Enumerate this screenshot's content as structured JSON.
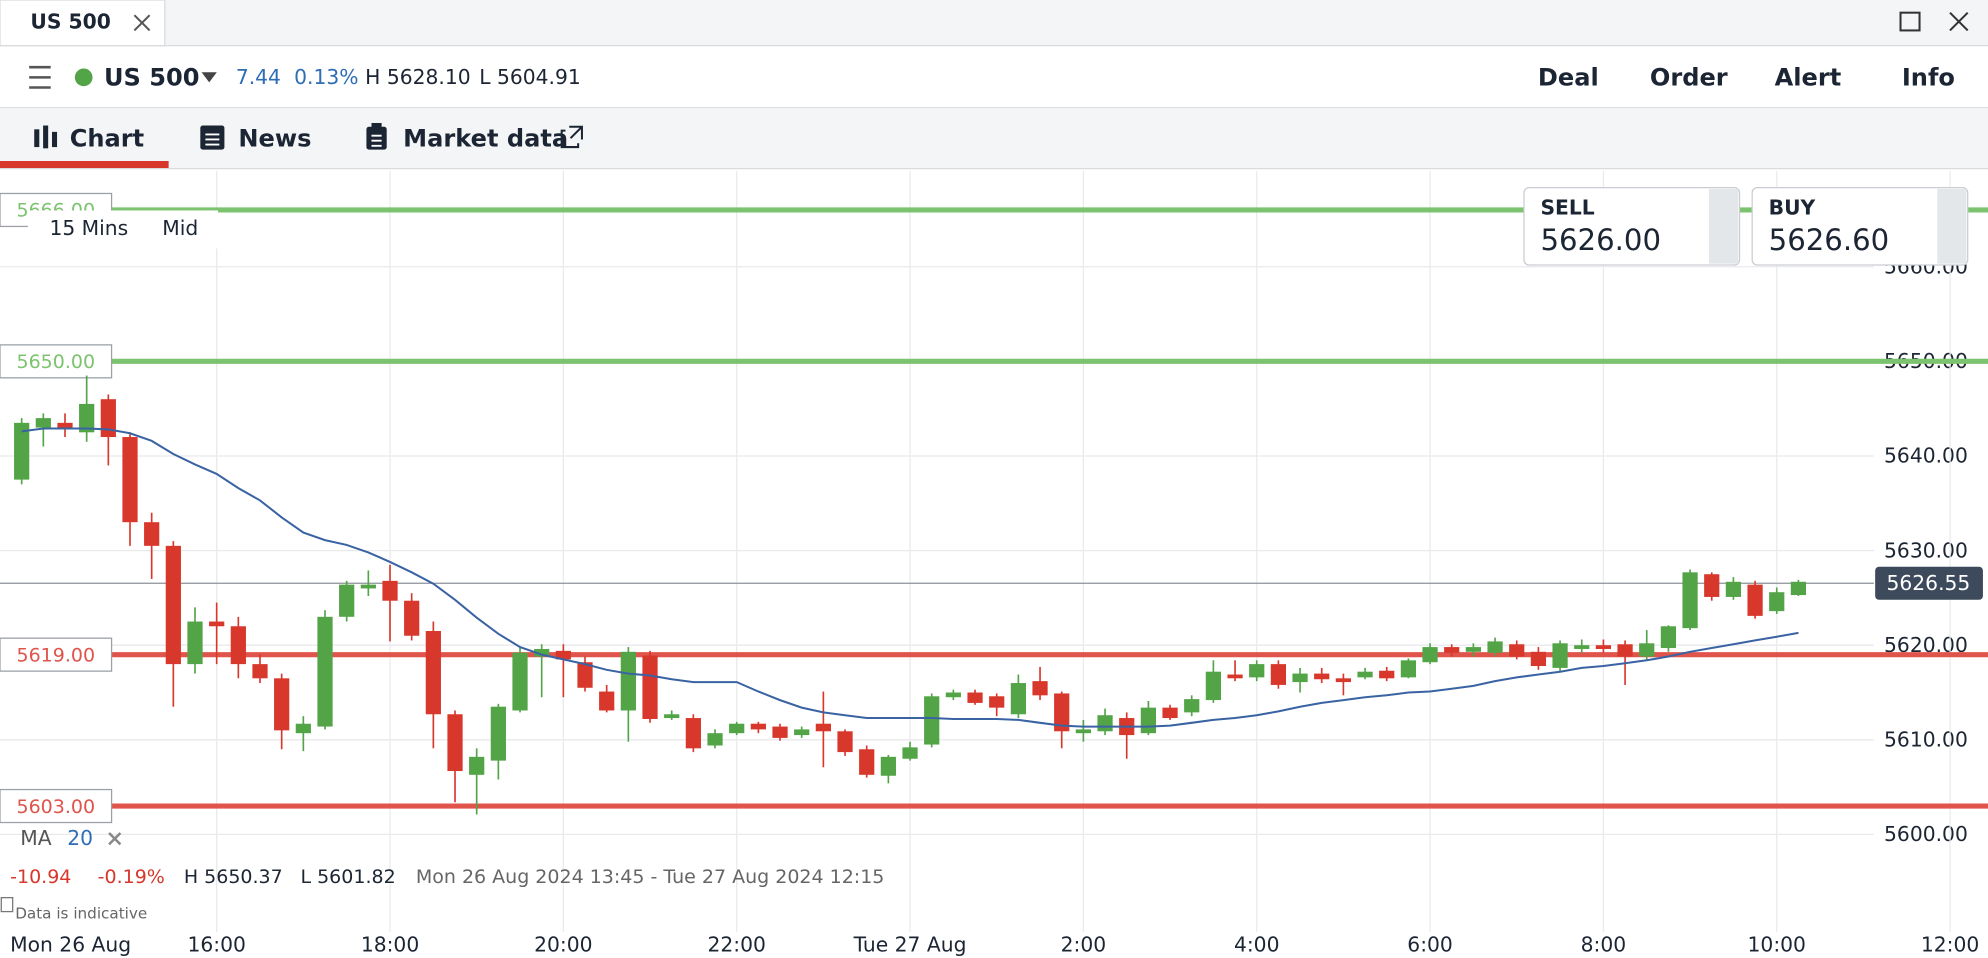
{
  "window": {
    "tab_title": "US 500"
  },
  "instrument": {
    "name": "US 500",
    "change": "7.44",
    "change_pct": "0.13%",
    "high": "H 5628.10",
    "low": "L 5604.91"
  },
  "actions": [
    "Deal",
    "Order",
    "Alert",
    "Info"
  ],
  "tabs": [
    "Chart",
    "News",
    "Market data"
  ],
  "quote": {
    "sell_label": "SELL",
    "sell": "5626.00",
    "buy_label": "BUY",
    "buy": "5626.60"
  },
  "chart_settings": {
    "interval": "15 Mins",
    "price_type": "Mid"
  },
  "indicator": {
    "name": "MA",
    "period": 20
  },
  "summary": {
    "change": "-10.94",
    "change_pct": "-0.19%",
    "high": "H 5650.37",
    "low": "L 5601.82",
    "range": "Mon 26 Aug 2024 13:45 - Tue 27 Aug 2024 12:15"
  },
  "disclaimer": "Data is indicative",
  "chart_data": {
    "type": "candlestick",
    "xlim": [
      -1,
      90.75
    ],
    "ylim": [
      5589.7,
      5670.1
    ],
    "start_label": "Mon 26 Aug",
    "xticks": [
      {
        "value": 9,
        "label": "16:00"
      },
      {
        "value": 17,
        "label": "18:00"
      },
      {
        "value": 25,
        "label": "20:00"
      },
      {
        "value": 33,
        "label": "22:00"
      },
      {
        "value": 41,
        "label": "Tue 27 Aug"
      },
      {
        "value": 49,
        "label": "2:00"
      },
      {
        "value": 57,
        "label": "4:00"
      },
      {
        "value": 65,
        "label": "6:00"
      },
      {
        "value": 73,
        "label": "8:00"
      },
      {
        "value": 81,
        "label": "10:00"
      },
      {
        "value": 89,
        "label": "12:00"
      }
    ],
    "yticks": [
      {
        "value": 5600,
        "label": "5600.00"
      },
      {
        "value": 5610,
        "label": "5610.00"
      },
      {
        "value": 5620,
        "label": "5620.00"
      },
      {
        "value": 5630,
        "label": "5630.00"
      },
      {
        "value": 5640,
        "label": "5640.00"
      },
      {
        "value": 5650,
        "label": "5650.00"
      },
      {
        "value": 5660,
        "label": "5660.00"
      }
    ],
    "grid": true,
    "up_color": "#52a447",
    "down_color": "#d8372c",
    "open": [
      5637.5,
      5643,
      5643.5,
      5642.5,
      5646,
      5642,
      5633,
      5630.5,
      5618,
      5622.5,
      5622,
      5618,
      5616.5,
      5610.7,
      5611.4,
      5623,
      5626,
      5626.8,
      5624.7,
      5621.5,
      5612.7,
      5606.3,
      5607.8,
      5613.1,
      5618.8,
      5619.4,
      5618.2,
      5615.1,
      5613.1,
      5618.9,
      5612.3,
      5612.3,
      5609.4,
      5610.7,
      5611.7,
      5611.4,
      5610.5,
      5611.7,
      5610.9,
      5609,
      5606.2,
      5608,
      5609.5,
      5614.5,
      5615,
      5614.6,
      5612.7,
      5616.2,
      5614.9,
      5610.7,
      5610.9,
      5612.3,
      5610.7,
      5613.4,
      5612.9,
      5614.2,
      5616.9,
      5616.6,
      5618,
      5616.1,
      5617,
      5616.5,
      5616.6,
      5617.3,
      5616.6,
      5618.2,
      5619.8,
      5619.3,
      5619.2,
      5620.1,
      5619.3,
      5617.6,
      5619.6,
      5620,
      5620.1,
      5618.8,
      5619.7,
      5621.8,
      5627.5,
      5625.1,
      5626.4,
      5623.6,
      5625.3
    ],
    "high": [
      5644,
      5644.5,
      5644.5,
      5648.5,
      5646.5,
      5642.5,
      5634,
      5631,
      5624,
      5624.5,
      5623,
      5619,
      5617,
      5612.5,
      5623.7,
      5626.8,
      5627.9,
      5628.5,
      5625.5,
      5622.5,
      5613.1,
      5609.1,
      5613.8,
      5619.8,
      5620.1,
      5620.1,
      5618.8,
      5615.8,
      5619.8,
      5619.4,
      5613.1,
      5612.7,
      5611.1,
      5611.9,
      5611.9,
      5611.7,
      5611.4,
      5615.1,
      5611.1,
      5609.4,
      5608.4,
      5609.8,
      5614.9,
      5615.3,
      5615.3,
      5614.9,
      5616.9,
      5617.7,
      5615.1,
      5612.1,
      5613.3,
      5612.9,
      5614.1,
      5613.7,
      5614.7,
      5618.4,
      5618.4,
      5618.4,
      5618.4,
      5617.6,
      5617.6,
      5617,
      5617.6,
      5617.7,
      5618.6,
      5620.2,
      5620.1,
      5620.2,
      5620.8,
      5620.5,
      5619.8,
      5620.5,
      5620.6,
      5620.6,
      5620.5,
      5621.6,
      5622.1,
      5628,
      5627.7,
      5627.2,
      5626.8,
      5626.1,
      5626.9
    ],
    "low": [
      5637,
      5641,
      5642,
      5641.5,
      5639,
      5630.5,
      5627,
      5613.5,
      5617,
      5618,
      5616.5,
      5616,
      5609,
      5608.8,
      5611.1,
      5622.5,
      5625.2,
      5620.4,
      5620.5,
      5609.1,
      5603.4,
      5602.1,
      5605.8,
      5612.9,
      5614.5,
      5614.5,
      5615.1,
      5612.9,
      5609.8,
      5611.8,
      5612.1,
      5608.7,
      5609.1,
      5610.5,
      5610.7,
      5609.9,
      5610.2,
      5607.1,
      5608.3,
      5606,
      5605.4,
      5607.8,
      5609.2,
      5614.2,
      5613.7,
      5612.5,
      5612.3,
      5614.2,
      5609.1,
      5609.8,
      5610.5,
      5608,
      5610.5,
      5612.1,
      5612.5,
      5613.9,
      5616.2,
      5616.2,
      5615.4,
      5615,
      5616,
      5614.7,
      5616.4,
      5616.2,
      5616.5,
      5618,
      5618.8,
      5618.8,
      5618.8,
      5618.5,
      5617.4,
      5617.2,
      5619.2,
      5619.2,
      5615.8,
      5618.5,
      5619.3,
      5621.6,
      5624.7,
      5624.8,
      5622.8,
      5623.3,
      5625.2
    ],
    "close": [
      5643.5,
      5644,
      5643,
      5645.5,
      5642,
      5633,
      5630.5,
      5618,
      5622.5,
      5622,
      5618,
      5616.5,
      5611,
      5611.7,
      5623,
      5626.4,
      5626.4,
      5624.7,
      5621,
      5612.7,
      5606.7,
      5608.2,
      5613.5,
      5619.2,
      5619.6,
      5618.5,
      5615.5,
      5613.1,
      5619.3,
      5612.2,
      5612.7,
      5609.1,
      5610.7,
      5611.7,
      5611.1,
      5610.2,
      5611.1,
      5610.9,
      5608.7,
      5606.3,
      5608.2,
      5609.2,
      5614.6,
      5615,
      5613.9,
      5613.4,
      5616,
      5614.7,
      5610.9,
      5611.1,
      5612.6,
      5610.5,
      5613.4,
      5612.3,
      5614.3,
      5617.2,
      5616.5,
      5618,
      5615.8,
      5617,
      5616.4,
      5616.1,
      5617.2,
      5616.5,
      5618.4,
      5619.8,
      5619.2,
      5619.8,
      5620.4,
      5618.8,
      5617.8,
      5620.2,
      5620,
      5619.6,
      5618.8,
      5620.2,
      5622,
      5627.7,
      5625.1,
      5626.7,
      5623.1,
      5625.6,
      5626.7
    ],
    "ma": {
      "color": "#3a63a3",
      "values": [
        5642.6,
        5642.9,
        5642.9,
        5642.9,
        5642.8,
        5642.4,
        5641.6,
        5640.2,
        5639.1,
        5638.1,
        5636.6,
        5635.3,
        5633.5,
        5631.9,
        5631.1,
        5630.6,
        5629.8,
        5628.8,
        5627.7,
        5626.5,
        5624.8,
        5622.9,
        5621.2,
        5619.8,
        5619.0,
        5618.5,
        5618.0,
        5617.4,
        5617.0,
        5616.8,
        5616.4,
        5616.1,
        5616.1,
        5616.1,
        5615.1,
        5614.2,
        5613.4,
        5612.9,
        5612.6,
        5612.3,
        5612.3,
        5612.3,
        5612.3,
        5612.2,
        5612.2,
        5612.2,
        5612.1,
        5611.8,
        5611.5,
        5611.4,
        5611.4,
        5611.4,
        5611.4,
        5611.5,
        5611.8,
        5612.1,
        5612.3,
        5612.6,
        5613.0,
        5613.5,
        5613.9,
        5614.2,
        5614.5,
        5614.7,
        5615.0,
        5615.1,
        5615.4,
        5615.7,
        5616.2,
        5616.6,
        5616.9,
        5617.2,
        5617.6,
        5617.8,
        5618.1,
        5618.4,
        5618.8,
        5619.3,
        5619.7,
        5620.1,
        5620.5,
        5620.9,
        5621.3
      ]
    },
    "levels": [
      {
        "value": 5666,
        "label": "5666.00",
        "color": "#7cc36f"
      },
      {
        "value": 5650,
        "label": "5650.00",
        "color": "#7cc36f"
      },
      {
        "value": 5619,
        "label": "5619.00",
        "color": "#e0544c"
      },
      {
        "value": 5603,
        "label": "5603.00",
        "color": "#e0544c"
      }
    ],
    "current_price": 5626.55
  }
}
